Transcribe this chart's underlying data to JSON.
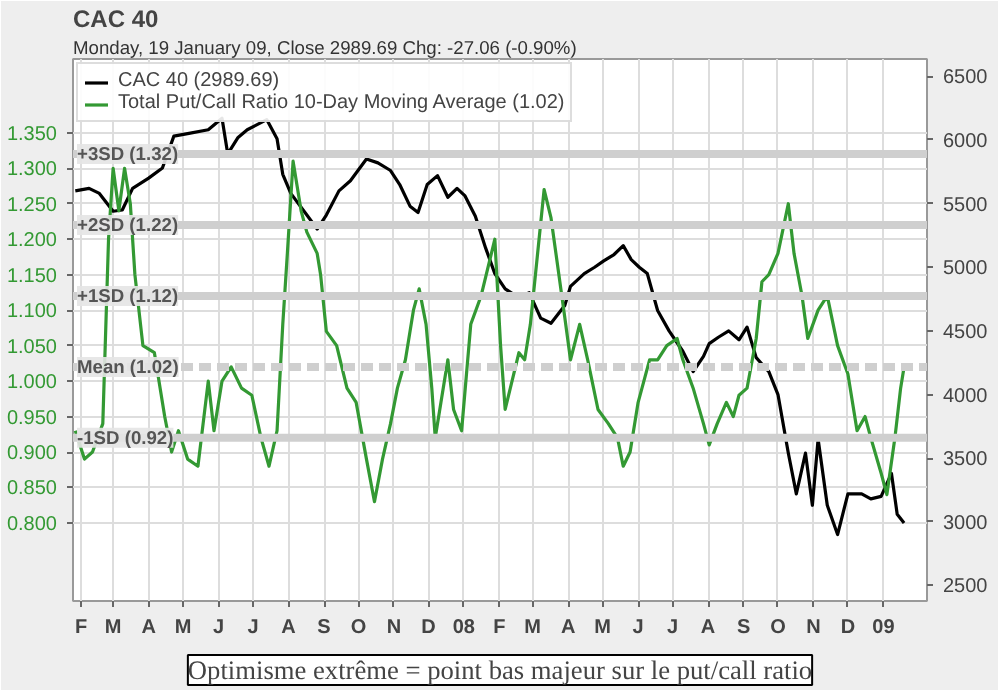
{
  "chart_data": {
    "type": "line",
    "title": "CAC 40",
    "subtitle": "Monday, 19 January 09, Close 2989.69 Chg: -27.06 (-0.90%)",
    "xlim": [
      "2007-01-25",
      "2009-02-08"
    ],
    "xticks": [
      {
        "value": "2007-02-01",
        "label": "F"
      },
      {
        "value": "2007-03-01",
        "label": "M"
      },
      {
        "value": "2007-04-01",
        "label": "A"
      },
      {
        "value": "2007-05-01",
        "label": "M"
      },
      {
        "value": "2007-06-01",
        "label": "J"
      },
      {
        "value": "2007-07-01",
        "label": "J"
      },
      {
        "value": "2007-08-01",
        "label": "A"
      },
      {
        "value": "2007-09-01",
        "label": "S"
      },
      {
        "value": "2007-10-01",
        "label": "O"
      },
      {
        "value": "2007-11-01",
        "label": "N"
      },
      {
        "value": "2007-12-01",
        "label": "D"
      },
      {
        "value": "2008-01-01",
        "label": "08"
      },
      {
        "value": "2008-02-01",
        "label": "F"
      },
      {
        "value": "2008-03-01",
        "label": "M"
      },
      {
        "value": "2008-04-01",
        "label": "A"
      },
      {
        "value": "2008-05-01",
        "label": "M"
      },
      {
        "value": "2008-06-01",
        "label": "J"
      },
      {
        "value": "2008-07-01",
        "label": "J"
      },
      {
        "value": "2008-08-01",
        "label": "A"
      },
      {
        "value": "2008-09-01",
        "label": "S"
      },
      {
        "value": "2008-10-01",
        "label": "O"
      },
      {
        "value": "2008-11-01",
        "label": "N"
      },
      {
        "value": "2008-12-01",
        "label": "D"
      },
      {
        "value": "2009-01-01",
        "label": "09"
      }
    ],
    "ylim": [
      0.69,
      1.454
    ],
    "yticks": [
      {
        "value": 0.8,
        "label": "0.800"
      },
      {
        "value": 0.85,
        "label": "0.850"
      },
      {
        "value": 0.9,
        "label": "0.900"
      },
      {
        "value": 0.95,
        "label": "0.950"
      },
      {
        "value": 1.0,
        "label": "1.000"
      },
      {
        "value": 1.05,
        "label": "1.050"
      },
      {
        "value": 1.1,
        "label": "1.100"
      },
      {
        "value": 1.15,
        "label": "1.150"
      },
      {
        "value": 1.2,
        "label": "1.200"
      },
      {
        "value": 1.25,
        "label": "1.250"
      },
      {
        "value": 1.3,
        "label": "1.300"
      },
      {
        "value": 1.35,
        "label": "1.350"
      }
    ],
    "y2lim": [
      2378,
      6636
    ],
    "y2ticks": [
      2500,
      3000,
      3500,
      4000,
      4500,
      5000,
      5500,
      6000,
      6500
    ],
    "grid": true,
    "legend": "top left",
    "series": [
      {
        "name": "CAC 40 (2989.69)",
        "color": "#000000",
        "axis": "y2",
        "x": [
          "2007-01-27",
          "2007-02-08",
          "2007-02-17",
          "2007-03-01",
          "2007-03-09",
          "2007-03-18",
          "2007-04-01",
          "2007-04-13",
          "2007-04-23",
          "2007-05-05",
          "2007-05-23",
          "2007-06-04",
          "2007-06-09",
          "2007-06-18",
          "2007-06-26",
          "2007-07-13",
          "2007-07-22",
          "2007-07-27",
          "2007-08-03",
          "2007-08-17",
          "2007-08-26",
          "2007-09-03",
          "2007-09-14",
          "2007-09-24",
          "2007-10-08",
          "2007-10-18",
          "2007-10-29",
          "2007-11-06",
          "2007-11-15",
          "2007-11-22",
          "2007-11-30",
          "2007-12-09",
          "2007-12-18",
          "2007-12-26",
          "2008-01-02",
          "2008-01-11",
          "2008-01-20",
          "2008-01-28",
          "2008-02-06",
          "2008-02-18",
          "2008-02-27",
          "2008-03-08",
          "2008-03-17",
          "2008-03-29",
          "2008-04-03",
          "2008-04-15",
          "2008-04-24",
          "2008-05-02",
          "2008-05-11",
          "2008-05-19",
          "2008-05-26",
          "2008-06-02",
          "2008-06-09",
          "2008-06-18",
          "2008-06-28",
          "2008-07-10",
          "2008-07-19",
          "2008-07-28",
          "2008-08-02",
          "2008-08-10",
          "2008-08-19",
          "2008-08-28",
          "2008-09-04",
          "2008-09-12",
          "2008-09-23",
          "2008-10-01",
          "2008-10-10",
          "2008-10-17",
          "2008-10-25",
          "2008-10-31",
          "2008-11-05",
          "2008-11-13",
          "2008-11-22",
          "2008-12-01",
          "2008-12-13",
          "2008-12-21",
          "2008-12-30",
          "2009-01-08",
          "2009-01-13",
          "2009-01-19"
        ],
        "values": [
          5600,
          5620,
          5580,
          5440,
          5450,
          5620,
          5700,
          5780,
          6030,
          6050,
          6080,
          6170,
          5890,
          6020,
          6080,
          6160,
          6010,
          5730,
          5580,
          5410,
          5300,
          5410,
          5600,
          5680,
          5850,
          5820,
          5760,
          5650,
          5480,
          5430,
          5650,
          5720,
          5550,
          5620,
          5560,
          5400,
          5150,
          4950,
          4830,
          4760,
          4800,
          4600,
          4560,
          4700,
          4850,
          4950,
          5000,
          5050,
          5100,
          5170,
          5060,
          5000,
          4950,
          4660,
          4500,
          4340,
          4180,
          4300,
          4400,
          4450,
          4500,
          4430,
          4530,
          4290,
          4180,
          4000,
          3540,
          3220,
          3540,
          3130,
          3650,
          3130,
          2900,
          3220,
          3220,
          3180,
          3200,
          3380,
          3060,
          2990
        ]
      },
      {
        "name": "Total Put/Call Ratio 10-Day Moving Average (1.02)",
        "color": "#339933",
        "x": [
          "2007-01-27",
          "2007-02-04",
          "2007-02-11",
          "2007-02-20",
          "2007-02-25",
          "2007-03-01",
          "2007-03-06",
          "2007-03-11",
          "2007-03-16",
          "2007-03-20",
          "2007-03-27",
          "2007-04-06",
          "2007-04-15",
          "2007-04-21",
          "2007-04-27",
          "2007-05-05",
          "2007-05-14",
          "2007-05-23",
          "2007-05-28",
          "2007-06-04",
          "2007-06-12",
          "2007-06-21",
          "2007-06-30",
          "2007-07-08",
          "2007-07-15",
          "2007-07-22",
          "2007-07-27",
          "2007-07-31",
          "2007-08-05",
          "2007-08-12",
          "2007-08-17",
          "2007-08-26",
          "2007-08-29",
          "2007-09-03",
          "2007-09-12",
          "2007-09-21",
          "2007-09-29",
          "2007-10-08",
          "2007-10-15",
          "2007-10-22",
          "2007-10-29",
          "2007-11-04",
          "2007-11-11",
          "2007-11-18",
          "2007-11-23",
          "2007-11-29",
          "2007-12-04",
          "2007-12-07",
          "2007-12-12",
          "2007-12-18",
          "2007-12-23",
          "2007-12-30",
          "2008-01-07",
          "2008-01-16",
          "2008-01-25",
          "2008-01-28",
          "2008-02-02",
          "2008-02-06",
          "2008-02-18",
          "2008-02-23",
          "2008-02-28",
          "2008-03-11",
          "2008-03-17",
          "2008-03-29",
          "2008-04-03",
          "2008-04-11",
          "2008-04-18",
          "2008-04-27",
          "2008-05-06",
          "2008-05-14",
          "2008-05-19",
          "2008-05-25",
          "2008-06-01",
          "2008-06-06",
          "2008-06-11",
          "2008-06-18",
          "2008-06-26",
          "2008-07-05",
          "2008-07-10",
          "2008-07-19",
          "2008-07-28",
          "2008-08-02",
          "2008-08-09",
          "2008-08-17",
          "2008-08-23",
          "2008-08-28",
          "2008-09-04",
          "2008-09-12",
          "2008-09-17",
          "2008-09-23",
          "2008-10-01",
          "2008-10-10",
          "2008-10-15",
          "2008-10-22",
          "2008-10-27",
          "2008-11-05",
          "2008-11-13",
          "2008-11-22",
          "2008-12-01",
          "2008-12-09",
          "2008-12-16",
          "2008-12-21",
          "2008-12-30",
          "2009-01-04",
          "2009-01-11",
          "2009-01-16",
          "2009-01-19"
        ],
        "values": [
          0.93,
          0.89,
          0.9,
          0.94,
          1.2,
          1.3,
          1.24,
          1.3,
          1.25,
          1.15,
          1.05,
          1.04,
          0.95,
          0.9,
          0.93,
          0.89,
          0.88,
          1.0,
          0.93,
          1.0,
          1.02,
          0.99,
          0.98,
          0.92,
          0.88,
          0.93,
          1.08,
          1.18,
          1.31,
          1.24,
          1.21,
          1.18,
          1.15,
          1.07,
          1.05,
          0.99,
          0.97,
          0.89,
          0.83,
          0.89,
          0.94,
          0.99,
          1.03,
          1.1,
          1.13,
          1.08,
          0.99,
          0.92,
          0.97,
          1.03,
          0.96,
          0.93,
          1.08,
          1.12,
          1.18,
          1.2,
          1.05,
          0.96,
          1.04,
          1.03,
          1.08,
          1.27,
          1.23,
          1.09,
          1.03,
          1.08,
          1.03,
          0.96,
          0.94,
          0.92,
          0.88,
          0.9,
          0.97,
          1.0,
          1.03,
          1.03,
          1.05,
          1.06,
          1.03,
          0.99,
          0.94,
          0.91,
          0.94,
          0.97,
          0.95,
          0.98,
          0.99,
          1.06,
          1.14,
          1.15,
          1.18,
          1.25,
          1.18,
          1.12,
          1.06,
          1.1,
          1.12,
          1.05,
          1.01,
          0.93,
          0.95,
          0.92,
          0.87,
          0.84,
          0.92,
          0.99,
          1.02
        ]
      }
    ],
    "ref_lines": [
      {
        "axis": "y",
        "value": 1.32,
        "label": "+3SD (1.32)",
        "color": "#cfcfcf",
        "line_style": "solid"
      },
      {
        "axis": "y",
        "value": 1.22,
        "label": "+2SD (1.22)",
        "color": "#cfcfcf",
        "line_style": "solid"
      },
      {
        "axis": "y",
        "value": 1.12,
        "label": "+1SD (1.12)",
        "color": "#cfcfcf",
        "line_style": "solid"
      },
      {
        "axis": "y",
        "value": 1.02,
        "label": "Mean (1.02)",
        "color": "#cfcfcf",
        "line_style": "dashed"
      },
      {
        "axis": "y",
        "value": 0.92,
        "label": "-1SD (0.92)",
        "color": "#cfcfcf",
        "line_style": "solid"
      }
    ],
    "annotations": [
      "Optimisme extrême = point bas majeur sur le put/call ratio"
    ]
  }
}
